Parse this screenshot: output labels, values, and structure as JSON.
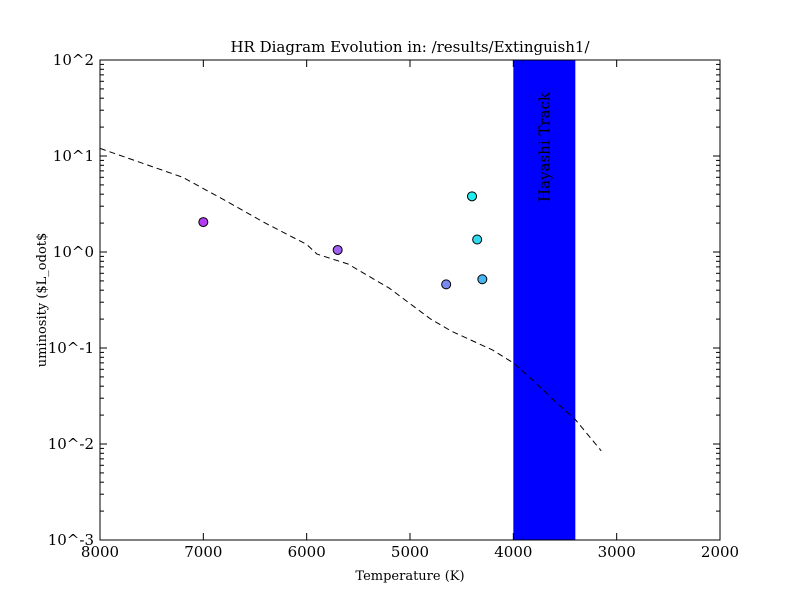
{
  "chart_data": {
    "type": "scatter",
    "title": "HR Diagram Evolution in: /results/Extinguish1/",
    "xlabel": "Temperature (K)",
    "ylabel": "uminosity ($L_odot$",
    "x_axis": {
      "min": 2000,
      "max": 8000,
      "inverted": true,
      "ticks": [
        8000,
        7000,
        6000,
        5000,
        4000,
        3000,
        2000
      ]
    },
    "y_axis": {
      "scale": "log",
      "min": 0.001,
      "max": 100
    },
    "y_tick_labels": [
      "10^2",
      "10^1",
      "10^0",
      "10^-1",
      "10^-2",
      "10^-3"
    ],
    "y_tick_values": [
      100,
      10,
      1,
      0.1,
      0.01,
      0.001
    ],
    "grid": false,
    "band": {
      "label": "Hayashi Track",
      "x_from": 3400,
      "x_to": 4000,
      "color": "#0000ff"
    },
    "reference_curve": {
      "style": "dashed",
      "color": "#000000",
      "points": [
        [
          8000,
          12
        ],
        [
          7600,
          8.5
        ],
        [
          7200,
          6.0
        ],
        [
          6800,
          3.5
        ],
        [
          6400,
          2.0
        ],
        [
          6000,
          1.2
        ],
        [
          5900,
          0.95
        ],
        [
          5600,
          0.75
        ],
        [
          5200,
          0.42
        ],
        [
          4800,
          0.2
        ],
        [
          4600,
          0.15
        ],
        [
          4200,
          0.095
        ],
        [
          4000,
          0.07
        ],
        [
          3800,
          0.045
        ],
        [
          3600,
          0.028
        ],
        [
          3400,
          0.018
        ],
        [
          3150,
          0.0085
        ]
      ]
    },
    "points": [
      {
        "x": 7000,
        "y": 2.05,
        "color": "#b43cf0"
      },
      {
        "x": 5700,
        "y": 1.05,
        "color": "#a060f0"
      },
      {
        "x": 4650,
        "y": 0.46,
        "color": "#7a88f0"
      },
      {
        "x": 4300,
        "y": 0.52,
        "color": "#48b4f0"
      },
      {
        "x": 4350,
        "y": 1.35,
        "color": "#30d8f0"
      },
      {
        "x": 4400,
        "y": 3.8,
        "color": "#20eef0"
      }
    ]
  }
}
